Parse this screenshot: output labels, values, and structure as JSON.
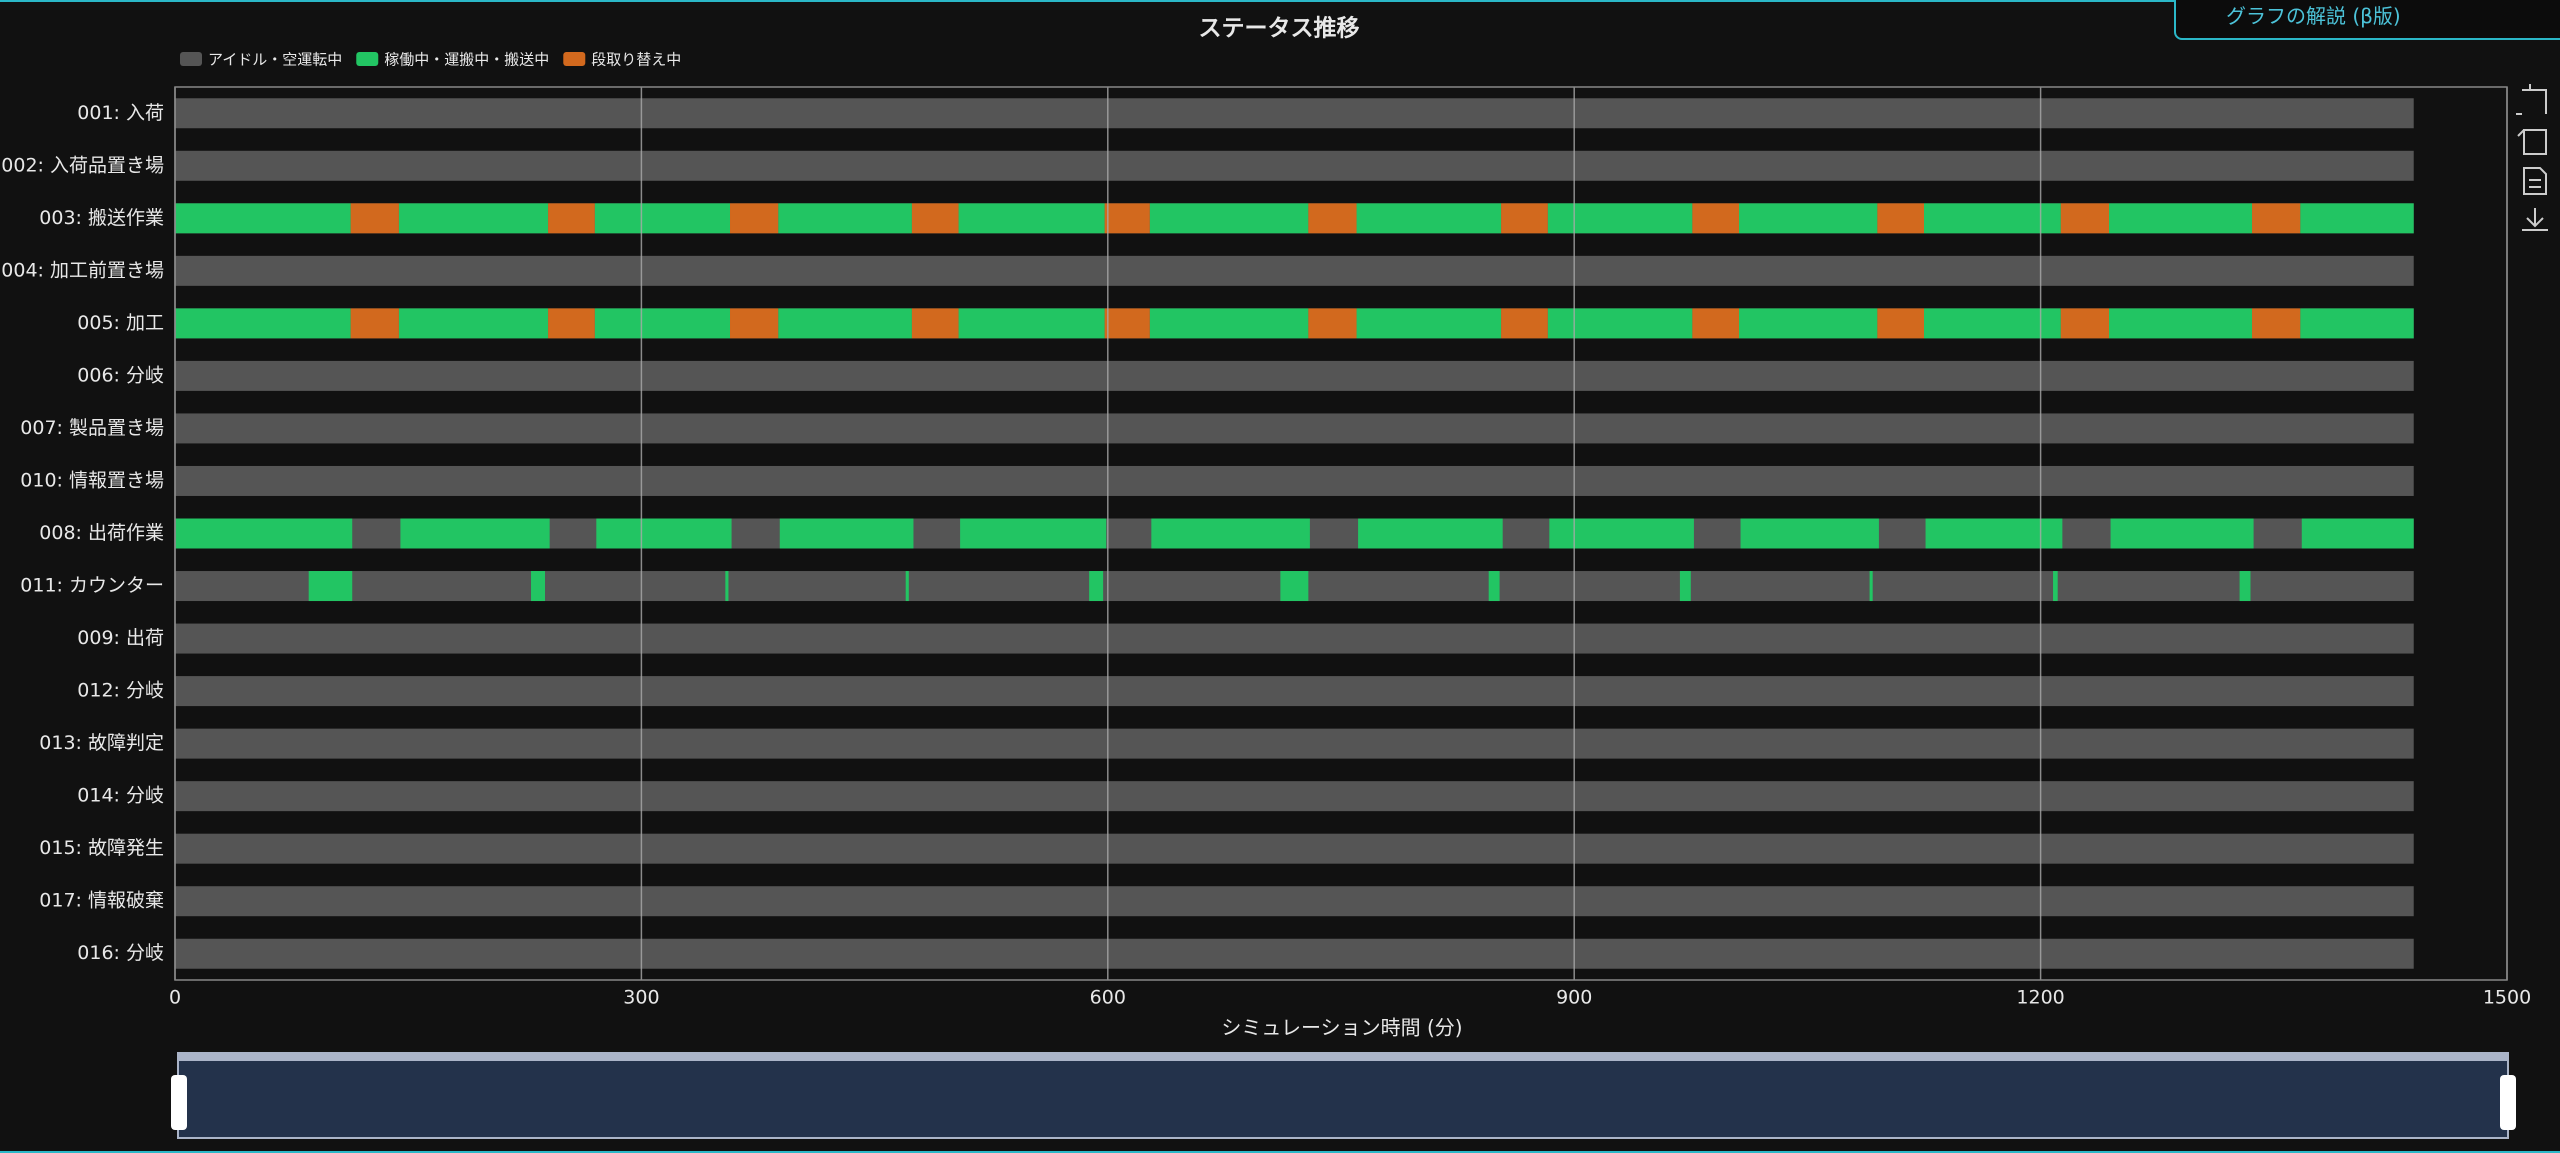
{
  "help_button": "グラフの解説 (β版)",
  "chart_data": {
    "type": "timeline",
    "title": "ステータス推移",
    "x_label": "シミュレーション時間 (分)",
    "series": [
      {
        "name": "アイドル・空運転中",
        "color": "#555555"
      },
      {
        "name": "稼働中・運搬中・搬送中",
        "color": "#22c563"
      },
      {
        "name": "段取り替え中",
        "color": "#d2691e"
      }
    ],
    "xlim": [
      0,
      1500
    ],
    "xticks": [
      0,
      300,
      600,
      900,
      1200,
      1500
    ],
    "grid": true,
    "rows": [
      {
        "label": "001: 入荷",
        "spans": [
          [
            [
              0,
              1440
            ]
          ],
          [],
          []
        ]
      },
      {
        "label": "002: 入荷品置き場",
        "spans": [
          [
            [
              0,
              1440
            ]
          ],
          [],
          []
        ]
      },
      {
        "label": "003: 搬送作業",
        "spans": [
          [
            [
              0,
              1440
            ]
          ],
          [
            [
              0,
              113
            ],
            [
              144,
              240
            ],
            [
              270,
              357
            ],
            [
              388,
              474
            ],
            [
              504,
              598
            ],
            [
              627,
              729
            ],
            [
              760,
              853
            ],
            [
              883,
              976
            ],
            [
              1006,
              1095
            ],
            [
              1125,
              1213
            ],
            [
              1244,
              1336
            ],
            [
              1367,
              1440
            ]
          ],
          [
            [
              113,
              144
            ],
            [
              240,
              270
            ],
            [
              357,
              388
            ],
            [
              474,
              504
            ],
            [
              598,
              627
            ],
            [
              729,
              760
            ],
            [
              853,
              883
            ],
            [
              976,
              1006
            ],
            [
              1095,
              1125
            ],
            [
              1213,
              1244
            ],
            [
              1336,
              1367
            ]
          ]
        ]
      },
      {
        "label": "004: 加工前置き場",
        "spans": [
          [
            [
              0,
              1440
            ]
          ],
          [],
          []
        ]
      },
      {
        "label": "005: 加工",
        "spans": [
          [
            [
              0,
              1440
            ]
          ],
          [
            [
              0,
              113
            ],
            [
              144,
              240
            ],
            [
              270,
              357
            ],
            [
              388,
              474
            ],
            [
              504,
              598
            ],
            [
              627,
              729
            ],
            [
              760,
              853
            ],
            [
              883,
              976
            ],
            [
              1006,
              1095
            ],
            [
              1125,
              1213
            ],
            [
              1244,
              1336
            ],
            [
              1367,
              1440
            ]
          ],
          [
            [
              113,
              144
            ],
            [
              240,
              270
            ],
            [
              357,
              388
            ],
            [
              474,
              504
            ],
            [
              598,
              627
            ],
            [
              729,
              760
            ],
            [
              853,
              883
            ],
            [
              976,
              1006
            ],
            [
              1095,
              1125
            ],
            [
              1213,
              1244
            ],
            [
              1336,
              1367
            ]
          ]
        ]
      },
      {
        "label": "006: 分岐",
        "spans": [
          [
            [
              0,
              1440
            ]
          ],
          [],
          []
        ]
      },
      {
        "label": "007: 製品置き場",
        "spans": [
          [
            [
              0,
              1440
            ]
          ],
          [],
          []
        ]
      },
      {
        "label": "010: 情報置き場",
        "spans": [
          [
            [
              0,
              1440
            ]
          ],
          [],
          []
        ]
      },
      {
        "label": "008: 出荷作業",
        "spans": [
          [
            [
              0,
              1440
            ]
          ],
          [
            [
              0,
              114
            ],
            [
              145,
              241
            ],
            [
              271,
              358
            ],
            [
              389,
              475
            ],
            [
              505,
              599
            ],
            [
              628,
              730
            ],
            [
              761,
              854
            ],
            [
              884,
              977
            ],
            [
              1007,
              1096
            ],
            [
              1126,
              1214
            ],
            [
              1245,
              1337
            ],
            [
              1368,
              1440
            ]
          ],
          []
        ]
      },
      {
        "label": "011: カウンター",
        "spans": [
          [
            [
              0,
              1440
            ]
          ],
          [
            [
              86,
              114
            ],
            [
              229,
              238
            ],
            [
              354,
              356
            ],
            [
              470,
              472
            ],
            [
              588,
              597
            ],
            [
              711,
              729
            ],
            [
              845,
              852
            ],
            [
              968,
              975
            ],
            [
              1090,
              1092
            ],
            [
              1208,
              1211
            ],
            [
              1328,
              1335
            ]
          ],
          []
        ]
      },
      {
        "label": "009: 出荷",
        "spans": [
          [
            [
              0,
              1440
            ]
          ],
          [],
          []
        ]
      },
      {
        "label": "012: 分岐",
        "spans": [
          [
            [
              0,
              1440
            ]
          ],
          [],
          []
        ]
      },
      {
        "label": "013: 故障判定",
        "spans": [
          [
            [
              0,
              1440
            ]
          ],
          [],
          []
        ]
      },
      {
        "label": "014: 分岐",
        "spans": [
          [
            [
              0,
              1440
            ]
          ],
          [],
          []
        ]
      },
      {
        "label": "015: 故障発生",
        "spans": [
          [
            [
              0,
              1440
            ]
          ],
          [],
          []
        ]
      },
      {
        "label": "017: 情報破棄",
        "spans": [
          [
            [
              0,
              1440
            ]
          ],
          [],
          []
        ]
      },
      {
        "label": "016: 分岐",
        "spans": [
          [
            [
              0,
              1440
            ]
          ],
          [],
          []
        ]
      }
    ]
  }
}
